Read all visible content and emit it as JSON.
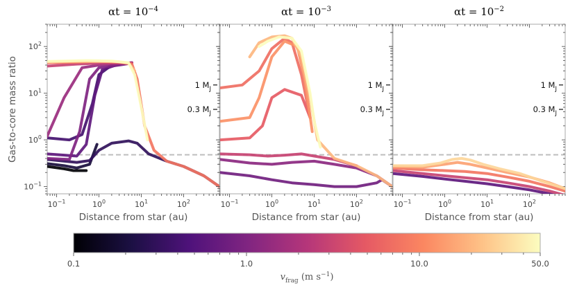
{
  "chart_data": [
    {
      "type": "line",
      "title": "α_t = 10^{-4}",
      "title_base": "αt = 10",
      "title_exp": "−4",
      "xlabel": "Distance from star (au)",
      "ylabel": "Gas-to-core mass ratio",
      "xscale": "log",
      "yscale": "log",
      "xlim": [
        0.06,
        700
      ],
      "ylim": [
        0.07,
        300
      ],
      "xticklabels": [
        "10^-1",
        "10^0",
        "10^1",
        "10^2"
      ],
      "yticklabels": [
        "10^-1",
        "10^0",
        "10^1",
        "10^2"
      ],
      "reference_line": {
        "y": 0.48,
        "style": "dashed",
        "color": "#bdbdbd"
      },
      "mass_markers": [
        {
          "label": "1 M",
          "sub": "J",
          "y": 15
        },
        {
          "label": "0.3 M",
          "sub": "J",
          "y": 4.5
        }
      ],
      "series": [
        {
          "name": "v_frag = 0.1",
          "vfrag": 0.1,
          "x": [
            0.06,
            0.15,
            0.25,
            0.5
          ],
          "y": [
            0.27,
            0.24,
            0.22,
            0.22
          ]
        },
        {
          "name": "v_frag = 0.2",
          "vfrag": 0.2,
          "x": [
            0.06,
            0.15,
            0.3,
            0.6,
            0.9
          ],
          "y": [
            0.31,
            0.28,
            0.25,
            0.3,
            0.8
          ]
        },
        {
          "name": "v_frag = 0.3",
          "vfrag": 0.3,
          "x": [
            0.06,
            0.3,
            0.6,
            1.0,
            2.0,
            5.0,
            8.0,
            15,
            40,
            100,
            300,
            700
          ],
          "y": [
            0.38,
            0.33,
            0.36,
            0.6,
            0.85,
            0.95,
            0.85,
            0.5,
            0.35,
            0.27,
            0.17,
            0.1
          ]
        },
        {
          "name": "v_frag = 0.4",
          "vfrag": 0.4,
          "x": [
            0.06,
            0.2,
            0.4,
            0.7,
            1.0,
            2.0,
            4.0,
            6.0
          ],
          "y": [
            1.1,
            1.0,
            1.3,
            6.0,
            25.0,
            40.0,
            45.0,
            44.0
          ]
        },
        {
          "name": "v_frag = 0.6",
          "vfrag": 0.6,
          "x": [
            0.06,
            0.3,
            0.5,
            0.8,
            1.2,
            3.0,
            6.0
          ],
          "y": [
            0.5,
            0.45,
            0.8,
            9.0,
            32.0,
            42.0,
            45.0
          ]
        },
        {
          "name": "v_frag = 1.0",
          "vfrag": 1.0,
          "x": [
            0.06,
            0.2,
            0.35,
            0.6,
            1.0,
            3.0,
            6.0
          ],
          "y": [
            0.4,
            0.38,
            1.5,
            20.0,
            35.0,
            40.0,
            44.0
          ]
        },
        {
          "name": "v_frag = 1.5",
          "vfrag": 1.5,
          "x": [
            0.06,
            0.15,
            0.4,
            1.0,
            3.0,
            6.0
          ],
          "y": [
            1.2,
            8.0,
            35.0,
            40.0,
            43.0,
            45.0
          ]
        },
        {
          "name": "v_frag = 3.0",
          "vfrag": 3.0,
          "x": [
            0.06,
            0.3,
            1.0,
            3.0,
            6.0
          ],
          "y": [
            38.0,
            42.0,
            44.0,
            45.0,
            44.0
          ]
        },
        {
          "name": "v_frag = 8.0",
          "vfrag": 8.0,
          "x": [
            0.06,
            0.3,
            1.0,
            3.0,
            6.0,
            8.0,
            12,
            20,
            40,
            100,
            300,
            700
          ],
          "y": [
            45.0,
            46.0,
            48.0,
            46.0,
            42.0,
            20.0,
            2.0,
            0.6,
            0.35,
            0.27,
            0.17,
            0.1
          ]
        },
        {
          "name": "v_frag = 20",
          "vfrag": 20.0,
          "x": [
            0.06,
            0.3,
            1.0,
            3.0,
            5.0,
            7.0
          ],
          "y": [
            47.0,
            48.0,
            48.0,
            47.0,
            44.0,
            30.0
          ]
        },
        {
          "name": "v_frag = 50",
          "vfrag": 50.0,
          "x": [
            0.06,
            0.5,
            2.0,
            5.0,
            7.0,
            10,
            14
          ],
          "y": [
            48.0,
            50.0,
            49.0,
            45.0,
            25.0,
            5.0,
            1.0
          ]
        }
      ]
    },
    {
      "type": "line",
      "title": "α_t = 10^{-3}",
      "title_base": "αt = 10",
      "title_exp": "−3",
      "xlabel": "Distance from star (au)",
      "ylabel": "",
      "xscale": "log",
      "yscale": "log",
      "xlim": [
        0.06,
        700
      ],
      "ylim": [
        0.07,
        300
      ],
      "xticklabels": [
        "10^-1",
        "10^0",
        "10^1",
        "10^2"
      ],
      "yticklabels": [],
      "reference_line": {
        "y": 0.48,
        "style": "dashed",
        "color": "#bdbdbd"
      },
      "mass_markers": [
        {
          "label": "1 M",
          "sub": "J",
          "y": 15
        },
        {
          "label": "0.3 M",
          "sub": "J",
          "y": 4.5
        }
      ],
      "series": [
        {
          "name": "v_frag = 0.8",
          "vfrag": 0.8,
          "x": [
            0.06,
            0.3,
            1.0,
            3.0,
            10,
            30,
            100,
            300,
            400,
            700
          ],
          "y": [
            0.2,
            0.17,
            0.14,
            0.12,
            0.11,
            0.1,
            0.1,
            0.12,
            0.14,
            0.1
          ]
        },
        {
          "name": "v_frag = 1.2",
          "vfrag": 1.2,
          "x": [
            0.06,
            0.3,
            1.0,
            3.0,
            10,
            30,
            100,
            300,
            700
          ],
          "y": [
            0.38,
            0.32,
            0.3,
            0.33,
            0.35,
            0.3,
            0.25,
            0.17,
            0.1
          ]
        },
        {
          "name": "v_frag = 3.0",
          "vfrag": 3.0,
          "x": [
            0.06,
            0.3,
            0.8,
            2.0,
            5.0,
            10,
            30,
            100
          ],
          "y": [
            0.5,
            0.48,
            0.45,
            0.47,
            0.5,
            0.45,
            0.38,
            0.28
          ]
        },
        {
          "name": "v_frag = 5.0",
          "vfrag": 5.0,
          "x": [
            0.06,
            0.3,
            0.6,
            1.0,
            2.0,
            5.0,
            8.0
          ],
          "y": [
            1.0,
            1.1,
            2.0,
            8.0,
            12.0,
            9.0,
            3.0
          ]
        },
        {
          "name": "v_frag = 7.0",
          "vfrag": 7.0,
          "x": [
            0.06,
            0.2,
            0.5,
            1.0,
            2.0,
            3.0,
            5.0,
            8.0
          ],
          "y": [
            13.0,
            15.0,
            30.0,
            90.0,
            150.0,
            120.0,
            25.0,
            3.0
          ]
        },
        {
          "name": "v_frag = 12",
          "vfrag": 12.0,
          "x": [
            0.06,
            0.3,
            0.5,
            1.0,
            2.0,
            4.0,
            6.0,
            9.0
          ],
          "y": [
            2.5,
            3.0,
            8.0,
            60.0,
            130.0,
            100.0,
            20.0,
            1.5
          ]
        },
        {
          "name": "v_frag = 20",
          "vfrag": 20.0,
          "x": [
            0.3,
            0.5,
            1.0,
            2.0,
            3.0,
            5.0,
            8.0,
            12,
            30,
            100,
            300,
            700
          ],
          "y": [
            60.0,
            120.0,
            160.0,
            170.0,
            150.0,
            60.0,
            8.0,
            1.0,
            0.4,
            0.28,
            0.17,
            0.1
          ]
        },
        {
          "name": "v_frag = 50",
          "vfrag": 50.0,
          "x": [
            0.5,
            0.8,
            1.5,
            3.0,
            5.0,
            8.0,
            10,
            14
          ],
          "y": [
            100.0,
            130.0,
            160.0,
            150.0,
            80.0,
            10.0,
            2.5,
            0.7
          ]
        }
      ]
    },
    {
      "type": "line",
      "title": "α_t = 10^{-2}",
      "title_base": "αt = 10",
      "title_exp": "−2",
      "xlabel": "Distance from star (au)",
      "ylabel": "",
      "xscale": "log",
      "yscale": "log",
      "xlim": [
        0.06,
        700
      ],
      "ylim": [
        0.07,
        300
      ],
      "xticklabels": [
        "10^-1",
        "10^0",
        "10^1",
        "10^2"
      ],
      "yticklabels": [],
      "reference_line": {
        "y": 0.48,
        "style": "dashed",
        "color": "#bdbdbd"
      },
      "mass_markers": [
        {
          "label": "1 M",
          "sub": "J",
          "y": 15
        },
        {
          "label": "0.3 M",
          "sub": "J",
          "y": 4.5
        }
      ],
      "series": [
        {
          "name": "v_frag = 0.6",
          "vfrag": 0.6,
          "x": [
            0.06,
            0.3,
            1.0,
            3.0,
            10,
            30,
            100,
            300,
            700
          ],
          "y": [
            0.19,
            0.165,
            0.145,
            0.13,
            0.115,
            0.1,
            0.085,
            0.07,
            0.058
          ]
        },
        {
          "name": "v_frag = 3.0",
          "vfrag": 3.0,
          "x": [
            0.06,
            0.3,
            1.0,
            3.0,
            10,
            30,
            100,
            300,
            700
          ],
          "y": [
            0.22,
            0.19,
            0.17,
            0.155,
            0.14,
            0.12,
            0.1,
            0.08,
            0.065
          ]
        },
        {
          "name": "v_frag = 8.0",
          "vfrag": 8.0,
          "x": [
            0.06,
            0.3,
            1.0,
            3.0,
            10,
            30,
            100,
            300,
            700
          ],
          "y": [
            0.25,
            0.23,
            0.22,
            0.21,
            0.19,
            0.16,
            0.13,
            0.1,
            0.08
          ]
        },
        {
          "name": "v_frag = 15",
          "vfrag": 15.0,
          "x": [
            0.06,
            0.3,
            1.0,
            2.0,
            4.0,
            10,
            30,
            100,
            300,
            700
          ],
          "y": [
            0.27,
            0.26,
            0.3,
            0.33,
            0.3,
            0.25,
            0.2,
            0.16,
            0.12,
            0.09
          ]
        },
        {
          "name": "v_frag = 30",
          "vfrag": 30.0,
          "x": [
            0.06,
            0.3,
            0.8,
            1.5,
            2.5,
            4.0,
            8.0,
            20,
            60,
            200,
            700
          ],
          "y": [
            0.28,
            0.28,
            0.32,
            0.38,
            0.4,
            0.37,
            0.3,
            0.24,
            0.19,
            0.13,
            0.09
          ]
        }
      ]
    }
  ],
  "colorbar": {
    "label": "v",
    "label_sub": "frag",
    "label_units": " (m s",
    "label_units_sup": "−1",
    "label_close": ")",
    "scale": "log",
    "range": [
      0.1,
      50.0
    ],
    "ticks": [
      0.1,
      1.0,
      10.0,
      50.0
    ],
    "tick_labels": [
      "0.1",
      "1.0",
      "10.0",
      "50.0"
    ],
    "colormap": "magma"
  },
  "colors": {
    "reference_line": "#bdbdbd",
    "axes_frame": "#aaaaaa"
  }
}
